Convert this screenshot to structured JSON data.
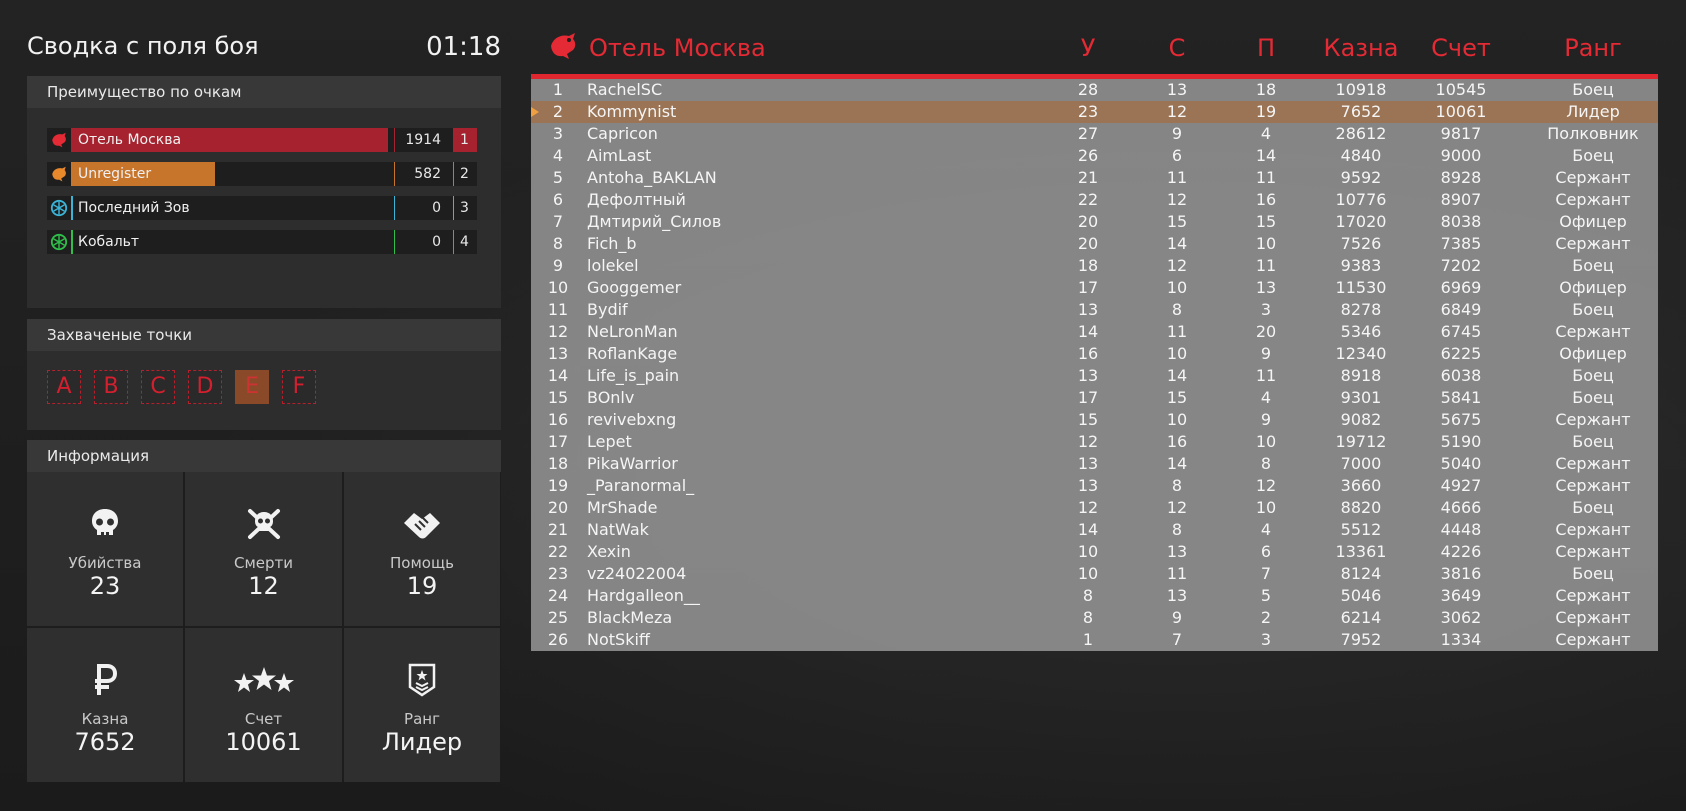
{
  "header": {
    "title": "Сводка с поля боя",
    "timer": "01:18"
  },
  "score_panel": {
    "title": "Преимущество по очкам",
    "teams": [
      {
        "name": "Отель Москва",
        "score": "1914",
        "place": "1",
        "color": "#a5222e",
        "fill": 0.9,
        "icon": "eagle-red-icon"
      },
      {
        "name": "Unregister",
        "score": "582",
        "place": "2",
        "color": "#c8752c",
        "fill": 0.41,
        "icon": "eagle-orange-icon"
      },
      {
        "name": "Последний Зов",
        "score": "0",
        "place": "3",
        "color": "#3bb4d8",
        "fill": 0,
        "icon": "snowflake-icon"
      },
      {
        "name": "Кобальт",
        "score": "0",
        "place": "4",
        "color": "#2fbf4a",
        "fill": 0,
        "icon": "snowflake-green-icon"
      }
    ]
  },
  "points_panel": {
    "title": "Захваченые точки",
    "points": [
      {
        "label": "A",
        "captured": false
      },
      {
        "label": "B",
        "captured": false
      },
      {
        "label": "C",
        "captured": false
      },
      {
        "label": "D",
        "captured": false
      },
      {
        "label": "E",
        "captured": true
      },
      {
        "label": "F",
        "captured": false
      }
    ]
  },
  "info_panel": {
    "title": "Информация",
    "stats": [
      {
        "label": "Убийства",
        "value": "23",
        "icon": "skull-icon"
      },
      {
        "label": "Смерти",
        "value": "12",
        "icon": "skull-crossbones-icon"
      },
      {
        "label": "Помощь",
        "value": "19",
        "icon": "handshake-icon"
      },
      {
        "label": "Казна",
        "value": "7652",
        "icon": "ruble-icon"
      },
      {
        "label": "Счет",
        "value": "10061",
        "icon": "stars-icon"
      },
      {
        "label": "Ранг",
        "value": "Лидер",
        "icon": "rank-badge-icon"
      }
    ]
  },
  "scoreboard": {
    "team_name": "Отель Москва",
    "columns": [
      "У",
      "С",
      "П",
      "Казна",
      "Счет",
      "Ранг"
    ],
    "accent": "#e42a34",
    "rows": [
      [
        "1",
        "RachelSC",
        "28",
        "13",
        "18",
        "10918",
        "10545",
        "Боец"
      ],
      [
        "2",
        "Kommynist",
        "23",
        "12",
        "19",
        "7652",
        "10061",
        "Лидер"
      ],
      [
        "3",
        "Capricon",
        "27",
        "9",
        "4",
        "28612",
        "9817",
        "Полковник"
      ],
      [
        "4",
        "AimLast",
        "26",
        "6",
        "14",
        "4840",
        "9000",
        "Боец"
      ],
      [
        "5",
        "Antoha_BAKLAN",
        "21",
        "11",
        "11",
        "9592",
        "8928",
        "Сержант"
      ],
      [
        "6",
        "Дефолтный",
        "22",
        "12",
        "16",
        "10776",
        "8907",
        "Сержант"
      ],
      [
        "7",
        "Дмтирий_Силов",
        "20",
        "15",
        "15",
        "17020",
        "8038",
        "Офицер"
      ],
      [
        "8",
        "Fich_b",
        "20",
        "14",
        "10",
        "7526",
        "7385",
        "Сержант"
      ],
      [
        "9",
        "lolekel",
        "18",
        "12",
        "11",
        "9383",
        "7202",
        "Боец"
      ],
      [
        "10",
        "Googgemer",
        "17",
        "10",
        "13",
        "11530",
        "6969",
        "Офицер"
      ],
      [
        "11",
        "Bydif",
        "13",
        "8",
        "3",
        "8278",
        "6849",
        "Боец"
      ],
      [
        "12",
        "NeLronMan",
        "14",
        "11",
        "20",
        "5346",
        "6745",
        "Сержант"
      ],
      [
        "13",
        "RoflanKage",
        "16",
        "10",
        "9",
        "12340",
        "6225",
        "Офицер"
      ],
      [
        "14",
        "Life_is_pain",
        "13",
        "14",
        "11",
        "8918",
        "6038",
        "Боец"
      ],
      [
        "15",
        "BOnlv",
        "17",
        "15",
        "4",
        "9301",
        "5841",
        "Боец"
      ],
      [
        "16",
        "revivebxng",
        "15",
        "10",
        "9",
        "9082",
        "5675",
        "Сержант"
      ],
      [
        "17",
        "Lepet",
        "12",
        "16",
        "10",
        "19712",
        "5190",
        "Боец"
      ],
      [
        "18",
        "PikaWarrior",
        "13",
        "14",
        "8",
        "7000",
        "5040",
        "Сержант"
      ],
      [
        "19",
        "_Paranormal_",
        "13",
        "8",
        "12",
        "3660",
        "4927",
        "Сержант"
      ],
      [
        "20",
        "MrShade",
        "12",
        "12",
        "10",
        "8820",
        "4666",
        "Боец"
      ],
      [
        "21",
        "NatWak",
        "14",
        "8",
        "4",
        "5512",
        "4448",
        "Сержант"
      ],
      [
        "22",
        "Xexin",
        "10",
        "13",
        "6",
        "13361",
        "4226",
        "Сержант"
      ],
      [
        "23",
        "vz24022004",
        "10",
        "11",
        "7",
        "8124",
        "3816",
        "Боец"
      ],
      [
        "24",
        "Hardgalleon__",
        "8",
        "13",
        "5",
        "5046",
        "3649",
        "Сержант"
      ],
      [
        "25",
        "BlackMeza",
        "8",
        "9",
        "2",
        "6214",
        "3062",
        "Сержант"
      ],
      [
        "26",
        "NotSkiff",
        "1",
        "7",
        "3",
        "7952",
        "1334",
        "Сержант"
      ]
    ],
    "highlight_row": 1
  }
}
